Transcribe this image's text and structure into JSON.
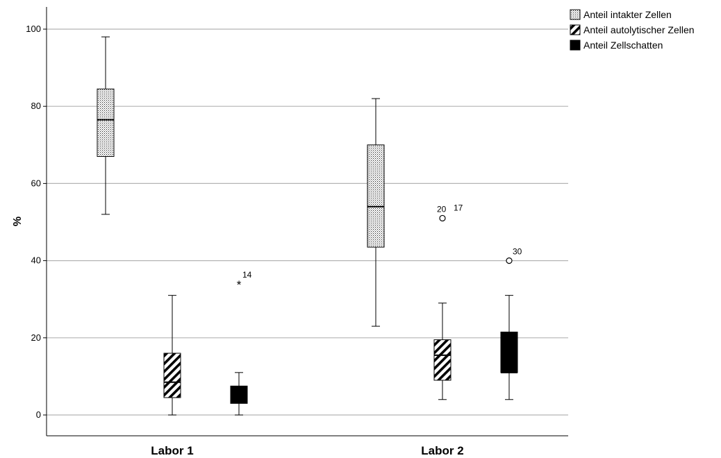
{
  "chart_data": {
    "type": "box",
    "ylabel": "%",
    "ylim": [
      -5,
      105
    ],
    "yticks": [
      0,
      20,
      40,
      60,
      80,
      100
    ],
    "grid": "horizontal",
    "legend_position": "top-right",
    "categories": [
      "Labor 1",
      "Labor 2"
    ],
    "series": [
      {
        "name": "Anteil intakter Zellen",
        "pattern": "dots",
        "boxes": [
          {
            "category": "Labor 1",
            "min": 52,
            "q1": 67,
            "median": 76.5,
            "q3": 84.5,
            "max": 98,
            "outliers": []
          },
          {
            "category": "Labor 2",
            "min": 23,
            "q1": 43.5,
            "median": 54,
            "q3": 70,
            "max": 82,
            "outliers": []
          }
        ]
      },
      {
        "name": "Anteil autolytischer Zellen",
        "pattern": "hatch",
        "boxes": [
          {
            "category": "Labor 1",
            "min": 0,
            "q1": 4.5,
            "median": 8.5,
            "q3": 16,
            "max": 31,
            "outliers": []
          },
          {
            "category": "Labor 2",
            "min": 4,
            "q1": 9,
            "median": 15.5,
            "q3": 19.5,
            "max": 29,
            "outliers": [
              {
                "value": 51,
                "marker": "circle",
                "label": "20",
                "label2": "17"
              }
            ]
          }
        ]
      },
      {
        "name": "Anteil Zellschatten",
        "pattern": "solid",
        "boxes": [
          {
            "category": "Labor 1",
            "min": 0,
            "q1": 3,
            "median": 5.5,
            "q3": 7.5,
            "max": 11,
            "outliers": [
              {
                "value": 34,
                "marker": "star",
                "label": "14"
              }
            ]
          },
          {
            "category": "Labor 2",
            "min": 4,
            "q1": 11,
            "median": 11,
            "q3": 21.5,
            "max": 31,
            "outliers": [
              {
                "value": 40,
                "marker": "circle",
                "label": "30"
              }
            ]
          }
        ]
      }
    ]
  }
}
